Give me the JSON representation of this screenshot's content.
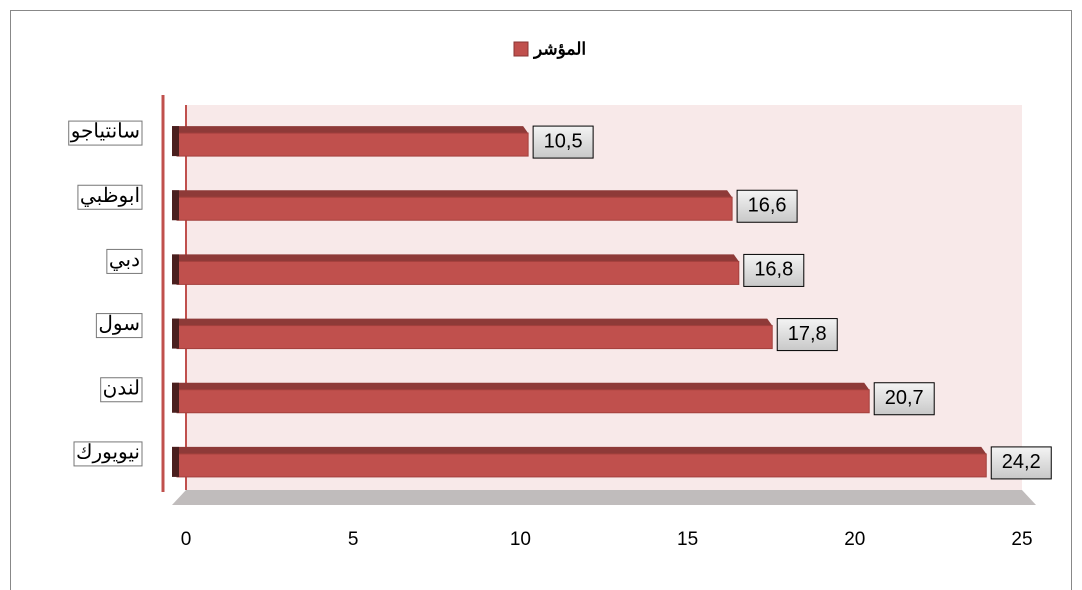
{
  "chart_data": {
    "type": "bar",
    "orientation": "horizontal",
    "categories": [
      "سانتياجو",
      "ابوظبي",
      "دبي",
      "سول",
      "لندن",
      "نيويورك"
    ],
    "series": [
      {
        "name": "المؤشر",
        "color": "#c0504d",
        "values": [
          10.5,
          16.6,
          16.8,
          17.8,
          20.7,
          24.2
        ],
        "value_labels": [
          "10,5",
          "16,6",
          "16,8",
          "17,8",
          "20,7",
          "24,2"
        ]
      }
    ],
    "xlim": [
      0,
      25
    ],
    "xticks": [
      0,
      5,
      10,
      15,
      20,
      25
    ],
    "legend": "top"
  }
}
